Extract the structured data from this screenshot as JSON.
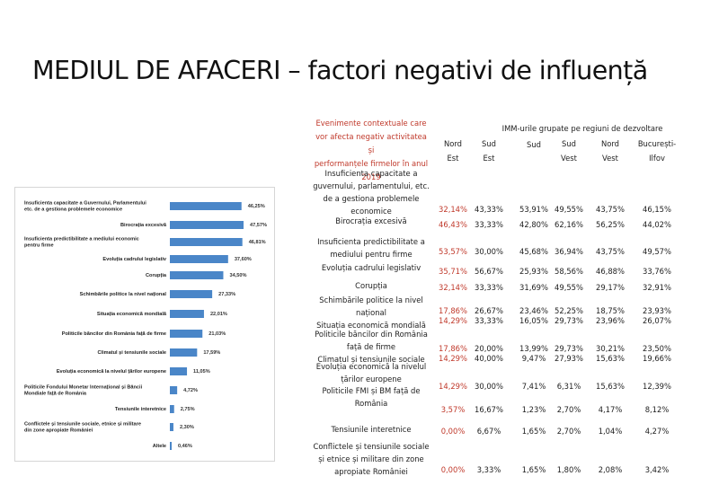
{
  "title": "MEDIUL DE AFACERI – factori negativi de influență",
  "chart": {
    "bar_color": "#4a86c8",
    "items": [
      {
        "label": [
          "Insuficienta capacitate a Guvernului, Parlamentului",
          "etc. de a gestiona problemele economice"
        ],
        "value": 46.25,
        "value_label": "46,25%"
      },
      {
        "label": [
          "Birocrația excesivă"
        ],
        "value": 47.57,
        "value_label": "47,57%"
      },
      {
        "label": [
          "Insuficienta predictibilitate a mediului economic",
          "pentru firme"
        ],
        "value": 46.81,
        "value_label": "46,81%"
      },
      {
        "label": [
          "Evoluția cadrului legislativ"
        ],
        "value": 37.6,
        "value_label": "37,60%"
      },
      {
        "label": [
          "Corupția"
        ],
        "value": 34.5,
        "value_label": "34,50%"
      },
      {
        "label": [
          "Schimbările politice la nivel național"
        ],
        "value": 27.33,
        "value_label": "27,33%"
      },
      {
        "label": [
          "Situația economică mondială"
        ],
        "value": 22.01,
        "value_label": "22,01%"
      },
      {
        "label": [
          "Politicile băncilor din România față de firme"
        ],
        "value": 21.03,
        "value_label": "21,03%"
      },
      {
        "label": [
          "Climatul și tensiunile sociale"
        ],
        "value": 17.59,
        "value_label": "17,59%"
      },
      {
        "label": [
          "Evoluția economică la nivelul țărilor europene"
        ],
        "value": 11.05,
        "value_label": "11,05%"
      },
      {
        "label": [
          "Politicile Fondului Monetar Internațional și Băncii",
          "Mondiale față de România"
        ],
        "value": 4.72,
        "value_label": "4,72%"
      },
      {
        "label": [
          "Tensiunile interetnice"
        ],
        "value": 2.75,
        "value_label": "2,75%"
      },
      {
        "label": [
          "Conflictele și tensiunile sociale, etnice și militare",
          "din zone apropiate României"
        ],
        "value": 2.3,
        "value_label": "2,30%"
      },
      {
        "label": [
          "Altele"
        ],
        "value": 0.46,
        "value_label": "0,46%"
      }
    ]
  },
  "table": {
    "header_label": [
      "Evenimente contextuale care",
      "vor afecta negativ activitatea și",
      "performanțele firmelor în anul",
      "2019"
    ],
    "region_header": "IMM-urile grupate pe regiuni de dezvoltare",
    "columns": [
      [
        "Nord",
        "Est"
      ],
      [
        "Sud",
        "Est"
      ],
      [
        "Sud"
      ],
      [
        "Sud",
        "Vest"
      ],
      [
        "Nord",
        "Vest"
      ],
      [
        "București-",
        "Ilfov"
      ]
    ],
    "rows": [
      {
        "label": [
          "Insuficienta capacitate a",
          "guvernului, parlamentului, etc.",
          "de a gestiona problemele",
          "economice"
        ],
        "values": [
          [
            "32,14%"
          ],
          [
            "43,33%"
          ],
          [
            "53,91%"
          ],
          [
            "49,55%"
          ],
          [
            "43,75%"
          ],
          [
            "46,15%"
          ]
        ]
      },
      {
        "label": [
          "Birocrația excesivă"
        ],
        "values": [
          [
            "46,43%"
          ],
          [
            "33,33%"
          ],
          [
            "42,80%"
          ],
          [
            "62,16%"
          ],
          [
            "56,25%"
          ],
          [
            "44,02%"
          ]
        ]
      },
      {
        "label": [
          "Insuficienta predictibilitate a",
          "mediului pentru firme"
        ],
        "values": [
          [
            "53,57%"
          ],
          [
            "30,00%"
          ],
          [
            "45,68%"
          ],
          [
            "36,94%"
          ],
          [
            "43,75%"
          ],
          [
            "49,57%"
          ]
        ]
      },
      {
        "label": [
          "Evoluția cadrului legislativ"
        ],
        "values": [
          [
            "35,71%"
          ],
          [
            "56,67%"
          ],
          [
            "25,93%"
          ],
          [
            "58,56%"
          ],
          [
            "46,88%"
          ],
          [
            "33,76%"
          ]
        ]
      },
      {
        "label": [
          "Corupția"
        ],
        "values": [
          [
            "32,14%"
          ],
          [
            "33,33%"
          ],
          [
            "31,69%"
          ],
          [
            "49,55%"
          ],
          [
            "29,17%"
          ],
          [
            "32,91%"
          ]
        ]
      },
      {
        "label": [
          "Schimbările politice la nivel",
          "național",
          "Situația economică mondială"
        ],
        "values": [
          [
            "17,86%",
            "14,29%"
          ],
          [
            "26,67%",
            "33,33%"
          ],
          [
            "23,46%",
            "16,05%"
          ],
          [
            "52,25%",
            "29,73%"
          ],
          [
            "18,75%",
            "23,96%"
          ],
          [
            "23,93%",
            "26,07%"
          ]
        ]
      },
      {
        "label": [
          "Politicile băncilor din România",
          "față de firme",
          "Climatul și tensiunile sociale"
        ],
        "values": [
          [
            "17,86%",
            "14,29%"
          ],
          [
            "20,00%",
            "40,00%"
          ],
          [
            "13,99%",
            "9,47%"
          ],
          [
            "29,73%",
            "27,93%"
          ],
          [
            "30,21%",
            "15,63%"
          ],
          [
            "23,50%",
            "19,66%"
          ]
        ]
      },
      {
        "label": [
          "Evoluția economică la nivelul",
          "țărilor europene"
        ],
        "values": [
          [
            "14,29%"
          ],
          [
            "30,00%"
          ],
          [
            "7,41%"
          ],
          [
            "6,31%"
          ],
          [
            "15,63%"
          ],
          [
            "12,39%"
          ]
        ]
      },
      {
        "label": [
          "Politicile FMI și BM față de",
          "România"
        ],
        "values": [
          [
            "3,57%"
          ],
          [
            "16,67%"
          ],
          [
            "1,23%"
          ],
          [
            "2,70%"
          ],
          [
            "4,17%"
          ],
          [
            "8,12%"
          ]
        ]
      },
      {
        "label": [
          "Tensiunile interetnice"
        ],
        "values": [
          [
            "0,00%"
          ],
          [
            "6,67%"
          ],
          [
            "1,65%"
          ],
          [
            "2,70%"
          ],
          [
            "1,04%"
          ],
          [
            "4,27%"
          ]
        ]
      },
      {
        "label": [
          "Conflictele și tensiunile sociale",
          "și etnice și militare din zone",
          "apropiate României"
        ],
        "values": [
          [
            "0,00%"
          ],
          [
            "3,33%"
          ],
          [
            "1,65%"
          ],
          [
            "1,80%"
          ],
          [
            "2,08%"
          ],
          [
            "3,42%"
          ]
        ]
      }
    ]
  }
}
